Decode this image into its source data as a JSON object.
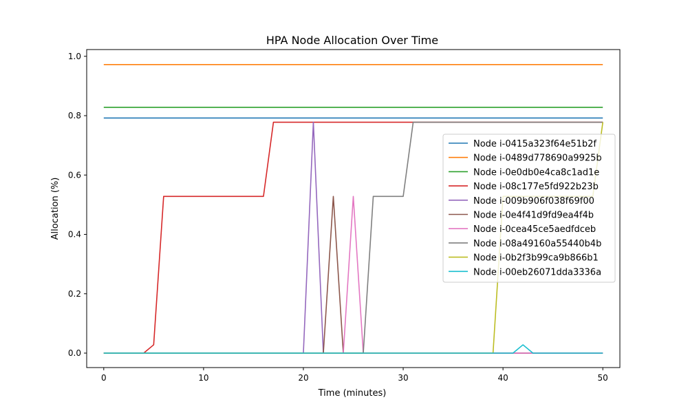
{
  "chart_data": {
    "type": "line",
    "title": "HPA Node Allocation Over Time",
    "xlabel": "Time (minutes)",
    "ylabel": "Allocation (%)",
    "xlim": [
      -1.71,
      51.71
    ],
    "ylim": [
      -0.0487,
      1.0227
    ],
    "xticks": [
      0,
      10,
      20,
      30,
      40,
      50
    ],
    "xtick_labels": [
      "0",
      "10",
      "20",
      "30",
      "40",
      "50"
    ],
    "yticks": [
      0.0,
      0.2,
      0.4,
      0.6,
      0.8,
      1.0
    ],
    "ytick_labels": [
      "0.0",
      "0.2",
      "0.4",
      "0.6",
      "0.8",
      "1.0"
    ],
    "grid": false,
    "legend_position": "center-right",
    "series": [
      {
        "name": "Node i-0415a323f64e51b2f",
        "color": "#1f77b4",
        "points": [
          [
            0,
            0.792
          ],
          [
            50,
            0.792
          ]
        ]
      },
      {
        "name": "Node i-0489d778690a9925b",
        "color": "#ff7f0e",
        "points": [
          [
            0,
            0.972
          ],
          [
            50,
            0.972
          ]
        ]
      },
      {
        "name": "Node i-0e0db0e4ca8c1ad1e",
        "color": "#2ca02c",
        "points": [
          [
            0,
            0.828
          ],
          [
            50,
            0.828
          ]
        ]
      },
      {
        "name": "Node i-08c177e5fd922b23b",
        "color": "#d62728",
        "points": [
          [
            0,
            0
          ],
          [
            4,
            0
          ],
          [
            5,
            0.028
          ],
          [
            6,
            0.528
          ],
          [
            16,
            0.528
          ],
          [
            17,
            0.778
          ],
          [
            50,
            0.778
          ]
        ]
      },
      {
        "name": "Node i-009b906f038f69f00",
        "color": "#9467bd",
        "points": [
          [
            0,
            0
          ],
          [
            20,
            0
          ],
          [
            21,
            0.778
          ],
          [
            22,
            0
          ],
          [
            50,
            0
          ]
        ]
      },
      {
        "name": "Node i-0e4f41d9fd9ea4f4b",
        "color": "#8c564b",
        "points": [
          [
            0,
            0
          ],
          [
            22,
            0
          ],
          [
            23,
            0.528
          ],
          [
            24,
            0
          ],
          [
            50,
            0
          ]
        ]
      },
      {
        "name": "Node i-0cea45ce5aedfdceb",
        "color": "#e377c2",
        "points": [
          [
            0,
            0
          ],
          [
            24,
            0
          ],
          [
            25,
            0.528
          ],
          [
            26,
            0
          ],
          [
            50,
            0
          ]
        ]
      },
      {
        "name": "Node i-08a49160a55440b4b",
        "color": "#7f7f7f",
        "points": [
          [
            0,
            0
          ],
          [
            26,
            0
          ],
          [
            27,
            0.528
          ],
          [
            30,
            0.528
          ],
          [
            31,
            0.778
          ],
          [
            50,
            0.778
          ]
        ]
      },
      {
        "name": "Node i-0b2f3b99ca9b866b1",
        "color": "#bcbd22",
        "points": [
          [
            0,
            0
          ],
          [
            39,
            0
          ],
          [
            40,
            0.528
          ],
          [
            49,
            0.528
          ],
          [
            50,
            0.778
          ]
        ]
      },
      {
        "name": "Node i-00eb26071dda3336a",
        "color": "#17becf",
        "points": [
          [
            0,
            0
          ],
          [
            41,
            0
          ],
          [
            42,
            0.028
          ],
          [
            43,
            0
          ],
          [
            50,
            0
          ]
        ]
      }
    ]
  }
}
